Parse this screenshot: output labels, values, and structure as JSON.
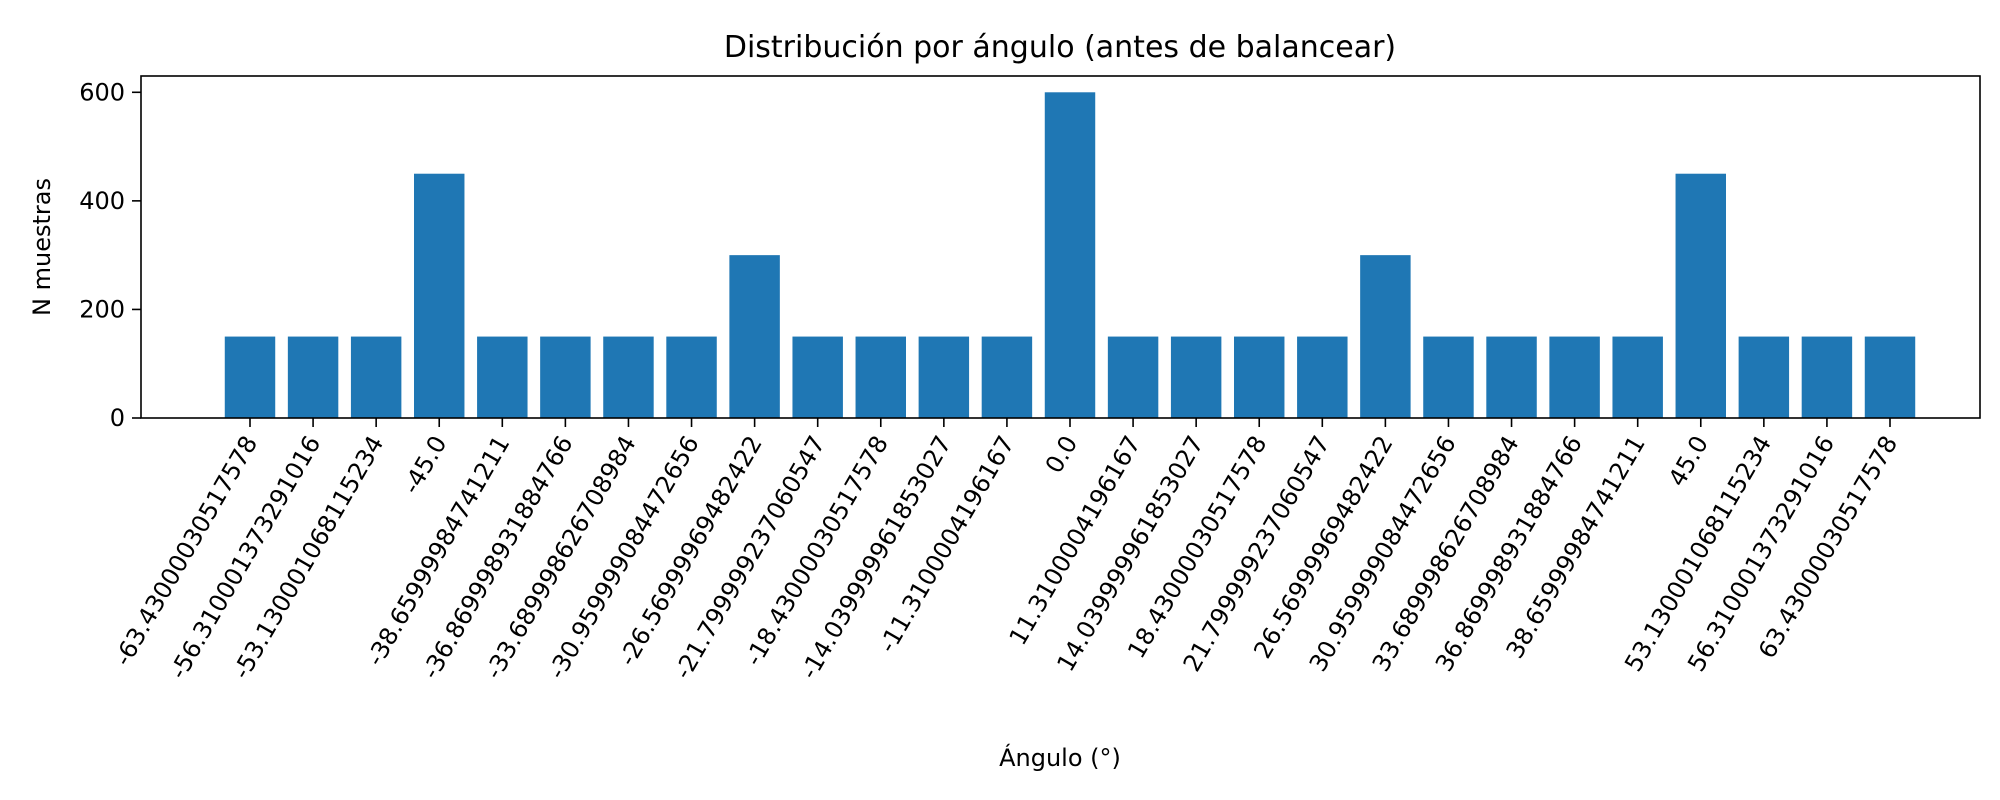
{
  "chart_data": {
    "type": "bar",
    "title": "Distribución por ángulo (antes de balancear)",
    "xlabel": "Ángulo (°)",
    "ylabel": "N muestras",
    "ylim": [
      0,
      630
    ],
    "yticks": [
      0,
      200,
      400,
      600
    ],
    "grid": false,
    "color": "#1f77b4",
    "bars": [
      {
        "x": -63.43000030517578,
        "label": "-63.43000030517578",
        "value": 150
      },
      {
        "x": -56.310001373291016,
        "label": "-56.310001373291016",
        "value": 150
      },
      {
        "x": -53.130001068115234,
        "label": "-53.130001068115234",
        "value": 150
      },
      {
        "x": -45.0,
        "label": "-45.0",
        "value": 450
      },
      {
        "x": -38.65999984741211,
        "label": "-38.65999984741211",
        "value": 150
      },
      {
        "x": -36.869998931884766,
        "label": "-36.869998931884766",
        "value": 150
      },
      {
        "x": -33.689998626708984,
        "label": "-33.689998626708984",
        "value": 150
      },
      {
        "x": -30.959999084472656,
        "label": "-30.959999084472656",
        "value": 150
      },
      {
        "x": -26.56999969482422,
        "label": "-26.56999969482422",
        "value": 300
      },
      {
        "x": -21.799999237060547,
        "label": "-21.799999237060547",
        "value": 150
      },
      {
        "x": -18.43000030517578,
        "label": "-18.43000030517578",
        "value": 150
      },
      {
        "x": -14.039999961853027,
        "label": "-14.039999961853027",
        "value": 150
      },
      {
        "x": -11.3100004196167,
        "label": "-11.3100004196167",
        "value": 150
      },
      {
        "x": 0.0,
        "label": "0.0",
        "value": 600
      },
      {
        "x": 11.3100004196167,
        "label": "11.3100004196167",
        "value": 150
      },
      {
        "x": 14.039999961853027,
        "label": "14.039999961853027",
        "value": 150
      },
      {
        "x": 18.43000030517578,
        "label": "18.43000030517578",
        "value": 150
      },
      {
        "x": 21.799999237060547,
        "label": "21.799999237060547",
        "value": 150
      },
      {
        "x": 26.56999969482422,
        "label": "26.56999969482422",
        "value": 300
      },
      {
        "x": 30.959999084472656,
        "label": "30.959999084472656",
        "value": 150
      },
      {
        "x": 33.689998626708984,
        "label": "33.689998626708984",
        "value": 150
      },
      {
        "x": 36.869998931884766,
        "label": "36.869998931884766",
        "value": 150
      },
      {
        "x": 38.65999984741211,
        "label": "38.65999984741211",
        "value": 150
      },
      {
        "x": 45.0,
        "label": "45.0",
        "value": 450
      },
      {
        "x": 53.130001068115234,
        "label": "53.130001068115234",
        "value": 150
      },
      {
        "x": 56.310001373291016,
        "label": "56.310001373291016",
        "value": 150
      },
      {
        "x": 63.43000030517578,
        "label": "63.43000030517578",
        "value": 150
      }
    ]
  }
}
